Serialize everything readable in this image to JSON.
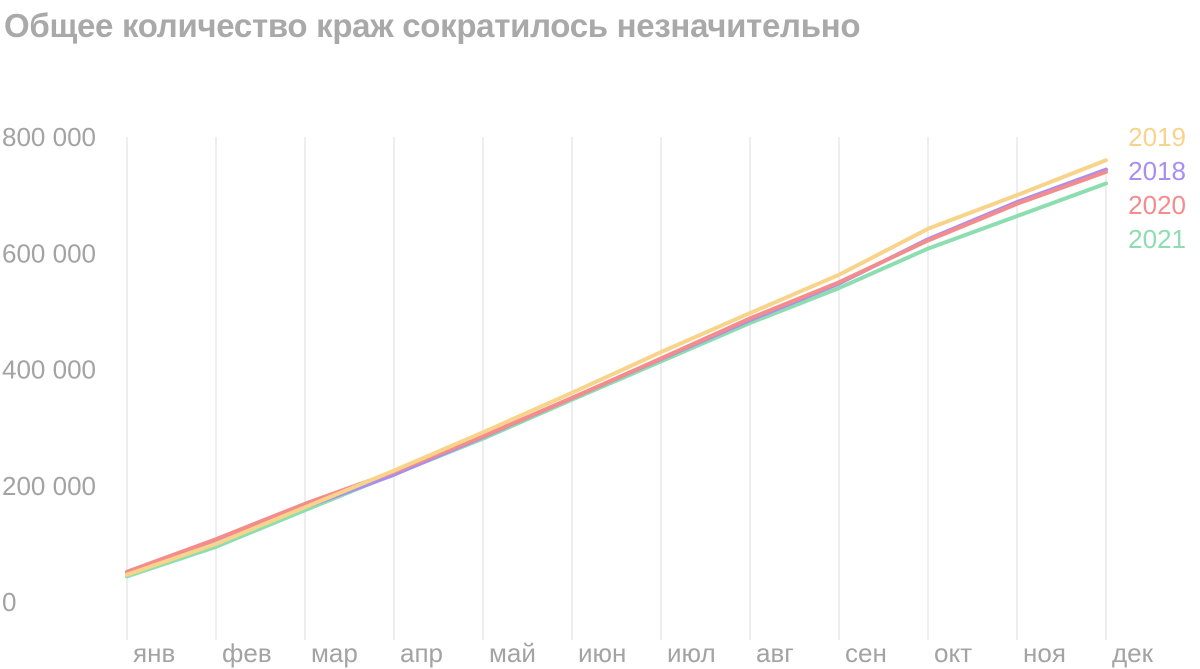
{
  "chart_data": {
    "type": "line",
    "title": "Общее количество краж сократилось незначительно",
    "xlabel": "",
    "ylabel": "",
    "categories": [
      "янв",
      "фев",
      "мар",
      "апр",
      "май",
      "июн",
      "июл",
      "авг",
      "сен",
      "окт",
      "ноя",
      "дек"
    ],
    "yticks": [
      {
        "value": 0,
        "label": "0"
      },
      {
        "value": 200000,
        "label": "200 000"
      },
      {
        "value": 400000,
        "label": "400 000"
      },
      {
        "value": 600000,
        "label": "600 000"
      },
      {
        "value": 800000,
        "label": "800 000"
      }
    ],
    "ylim": [
      0,
      800000
    ],
    "grid": {
      "vertical": true,
      "horizontal": false
    },
    "legend_placement": "right",
    "series": [
      {
        "name": "2019",
        "color": "#f8d48b",
        "values": [
          47000,
          100000,
          163000,
          226000,
          292000,
          360000,
          430000,
          497000,
          563000,
          642000,
          700000,
          760000
        ]
      },
      {
        "name": "2018",
        "color": "#a98ef0",
        "values": [
          48000,
          102000,
          163000,
          219000,
          284000,
          351000,
          418000,
          485000,
          548000,
          624000,
          688000,
          744000
        ]
      },
      {
        "name": "2020",
        "color": "#f48c8c",
        "values": [
          52000,
          108000,
          169000,
          224000,
          285000,
          351000,
          419000,
          488000,
          550000,
          622000,
          685000,
          740000
        ]
      },
      {
        "name": "2021",
        "color": "#8cdeb1",
        "values": [
          44000,
          95000,
          158000,
          220000,
          281000,
          348000,
          414000,
          480000,
          540000,
          608000,
          664000,
          720000
        ]
      }
    ]
  }
}
